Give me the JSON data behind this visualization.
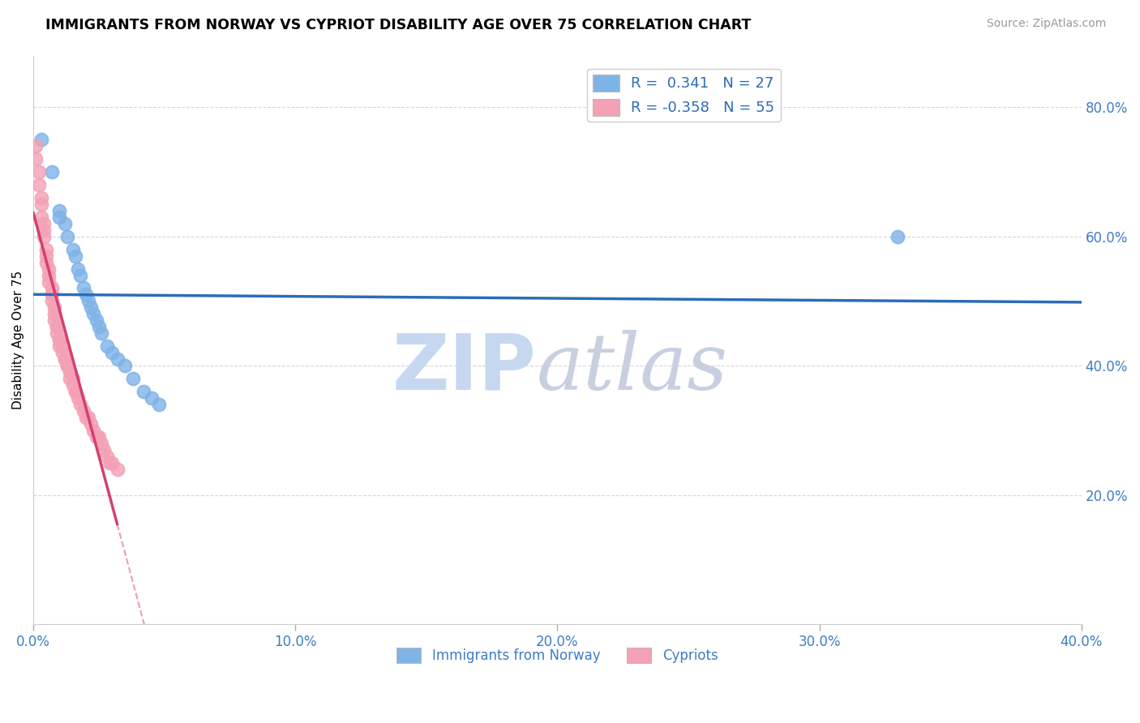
{
  "title": "IMMIGRANTS FROM NORWAY VS CYPRIOT DISABILITY AGE OVER 75 CORRELATION CHART",
  "source": "Source: ZipAtlas.com",
  "ylabel": "Disability Age Over 75",
  "xlim": [
    0.0,
    0.4
  ],
  "ylim": [
    0.0,
    0.88
  ],
  "xticks": [
    0.0,
    0.1,
    0.2,
    0.3,
    0.4
  ],
  "xtick_labels": [
    "0.0%",
    "10.0%",
    "20.0%",
    "30.0%",
    "40.0%"
  ],
  "yticks_right": [
    0.2,
    0.4,
    0.6,
    0.8
  ],
  "ytick_right_labels": [
    "20.0%",
    "40.0%",
    "60.0%",
    "80.0%"
  ],
  "legend_R_blue": "0.341",
  "legend_N_blue": "27",
  "legend_R_pink": "-0.358",
  "legend_N_pink": "55",
  "legend_label_blue": "Immigrants from Norway",
  "legend_label_pink": "Cypriots",
  "norway_x": [
    0.003,
    0.007,
    0.01,
    0.01,
    0.012,
    0.013,
    0.015,
    0.016,
    0.017,
    0.018,
    0.019,
    0.02,
    0.021,
    0.022,
    0.023,
    0.024,
    0.025,
    0.026,
    0.028,
    0.03,
    0.032,
    0.035,
    0.038,
    0.042,
    0.045,
    0.048,
    0.33
  ],
  "norway_y": [
    0.75,
    0.7,
    0.64,
    0.63,
    0.62,
    0.6,
    0.58,
    0.57,
    0.55,
    0.54,
    0.52,
    0.51,
    0.5,
    0.49,
    0.48,
    0.47,
    0.46,
    0.45,
    0.43,
    0.42,
    0.41,
    0.4,
    0.38,
    0.36,
    0.35,
    0.34,
    0.6
  ],
  "cypriot_x": [
    0.001,
    0.001,
    0.002,
    0.002,
    0.003,
    0.003,
    0.003,
    0.004,
    0.004,
    0.004,
    0.005,
    0.005,
    0.005,
    0.006,
    0.006,
    0.006,
    0.007,
    0.007,
    0.007,
    0.008,
    0.008,
    0.008,
    0.009,
    0.009,
    0.009,
    0.01,
    0.01,
    0.01,
    0.011,
    0.011,
    0.012,
    0.012,
    0.013,
    0.013,
    0.014,
    0.014,
    0.015,
    0.015,
    0.016,
    0.016,
    0.017,
    0.018,
    0.019,
    0.02,
    0.021,
    0.022,
    0.023,
    0.024,
    0.025,
    0.026,
    0.027,
    0.028,
    0.029,
    0.03,
    0.032
  ],
  "cypriot_y": [
    0.74,
    0.72,
    0.7,
    0.68,
    0.66,
    0.65,
    0.63,
    0.62,
    0.61,
    0.6,
    0.58,
    0.57,
    0.56,
    0.55,
    0.54,
    0.53,
    0.52,
    0.51,
    0.5,
    0.49,
    0.48,
    0.47,
    0.46,
    0.46,
    0.45,
    0.44,
    0.44,
    0.43,
    0.43,
    0.42,
    0.41,
    0.41,
    0.4,
    0.4,
    0.39,
    0.38,
    0.38,
    0.37,
    0.36,
    0.36,
    0.35,
    0.34,
    0.33,
    0.32,
    0.32,
    0.31,
    0.3,
    0.29,
    0.29,
    0.28,
    0.27,
    0.26,
    0.25,
    0.25,
    0.24
  ],
  "norway_color": "#7EB3E8",
  "cypriot_color": "#F4A0B5",
  "norway_line_color": "#2B6CB8",
  "cypriot_line_color": "#D44070",
  "background_color": "#ffffff",
  "grid_color": "#cccccc",
  "watermark_zip": "ZIP",
  "watermark_atlas": "atlas",
  "watermark_color_zip": "#c5d8ef",
  "watermark_color_atlas": "#c8cfe0"
}
